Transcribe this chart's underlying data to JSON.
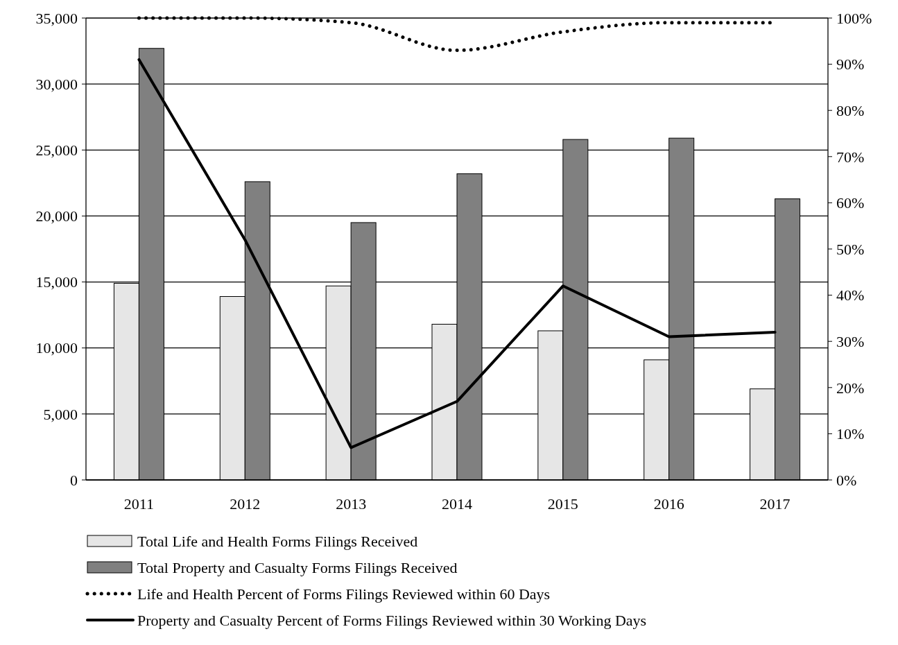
{
  "chart_data": {
    "type": "bar",
    "categories": [
      "2011",
      "2012",
      "2013",
      "2014",
      "2015",
      "2016",
      "2017"
    ],
    "series": [
      {
        "name": "Total Life and Health Forms Filings Received",
        "color": "#e6e6e6",
        "values": [
          14900,
          13900,
          14700,
          11800,
          11300,
          9100,
          6900
        ]
      },
      {
        "name": "Total Property and Casualty Forms Filings Received",
        "color": "#808080",
        "values": [
          32700,
          22600,
          19500,
          23200,
          25800,
          25900,
          21300
        ]
      },
      {
        "name": "Life and Health Percent of Forms Filings Reviewed within 60 Days",
        "type": "line",
        "axis": "y2",
        "color": "#000000",
        "line_style": "dotted",
        "values": [
          100,
          100,
          99,
          93,
          97,
          99,
          99
        ]
      },
      {
        "name": "Property and Casualty Percent of Forms Filings Reviewed within 30 Working Days",
        "type": "line",
        "axis": "y2",
        "color": "#000000",
        "line_style": "solid",
        "values": [
          91,
          52,
          7,
          17,
          42,
          31,
          32
        ]
      }
    ],
    "ylim": [
      0,
      35000
    ],
    "yticks": [
      {
        "value": 0,
        "label": "0"
      },
      {
        "value": 5000,
        "label": "5,000"
      },
      {
        "value": 10000,
        "label": "10,000"
      },
      {
        "value": 15000,
        "label": "15,000"
      },
      {
        "value": 20000,
        "label": "20,000"
      },
      {
        "value": 25000,
        "label": "25,000"
      },
      {
        "value": 30000,
        "label": "30,000"
      },
      {
        "value": 35000,
        "label": "35,000"
      }
    ],
    "y2lim": [
      0,
      100
    ],
    "y2ticks": [
      {
        "value": 0,
        "label": "0%"
      },
      {
        "value": 10,
        "label": "10%"
      },
      {
        "value": 20,
        "label": "20%"
      },
      {
        "value": 30,
        "label": "30%"
      },
      {
        "value": 40,
        "label": "40%"
      },
      {
        "value": 50,
        "label": "50%"
      },
      {
        "value": 60,
        "label": "60%"
      },
      {
        "value": 70,
        "label": "70%"
      },
      {
        "value": 80,
        "label": "80%"
      },
      {
        "value": 90,
        "label": "90%"
      },
      {
        "value": 100,
        "label": "100%"
      }
    ],
    "grid": "y",
    "legend": "bottom",
    "marker": "none"
  }
}
